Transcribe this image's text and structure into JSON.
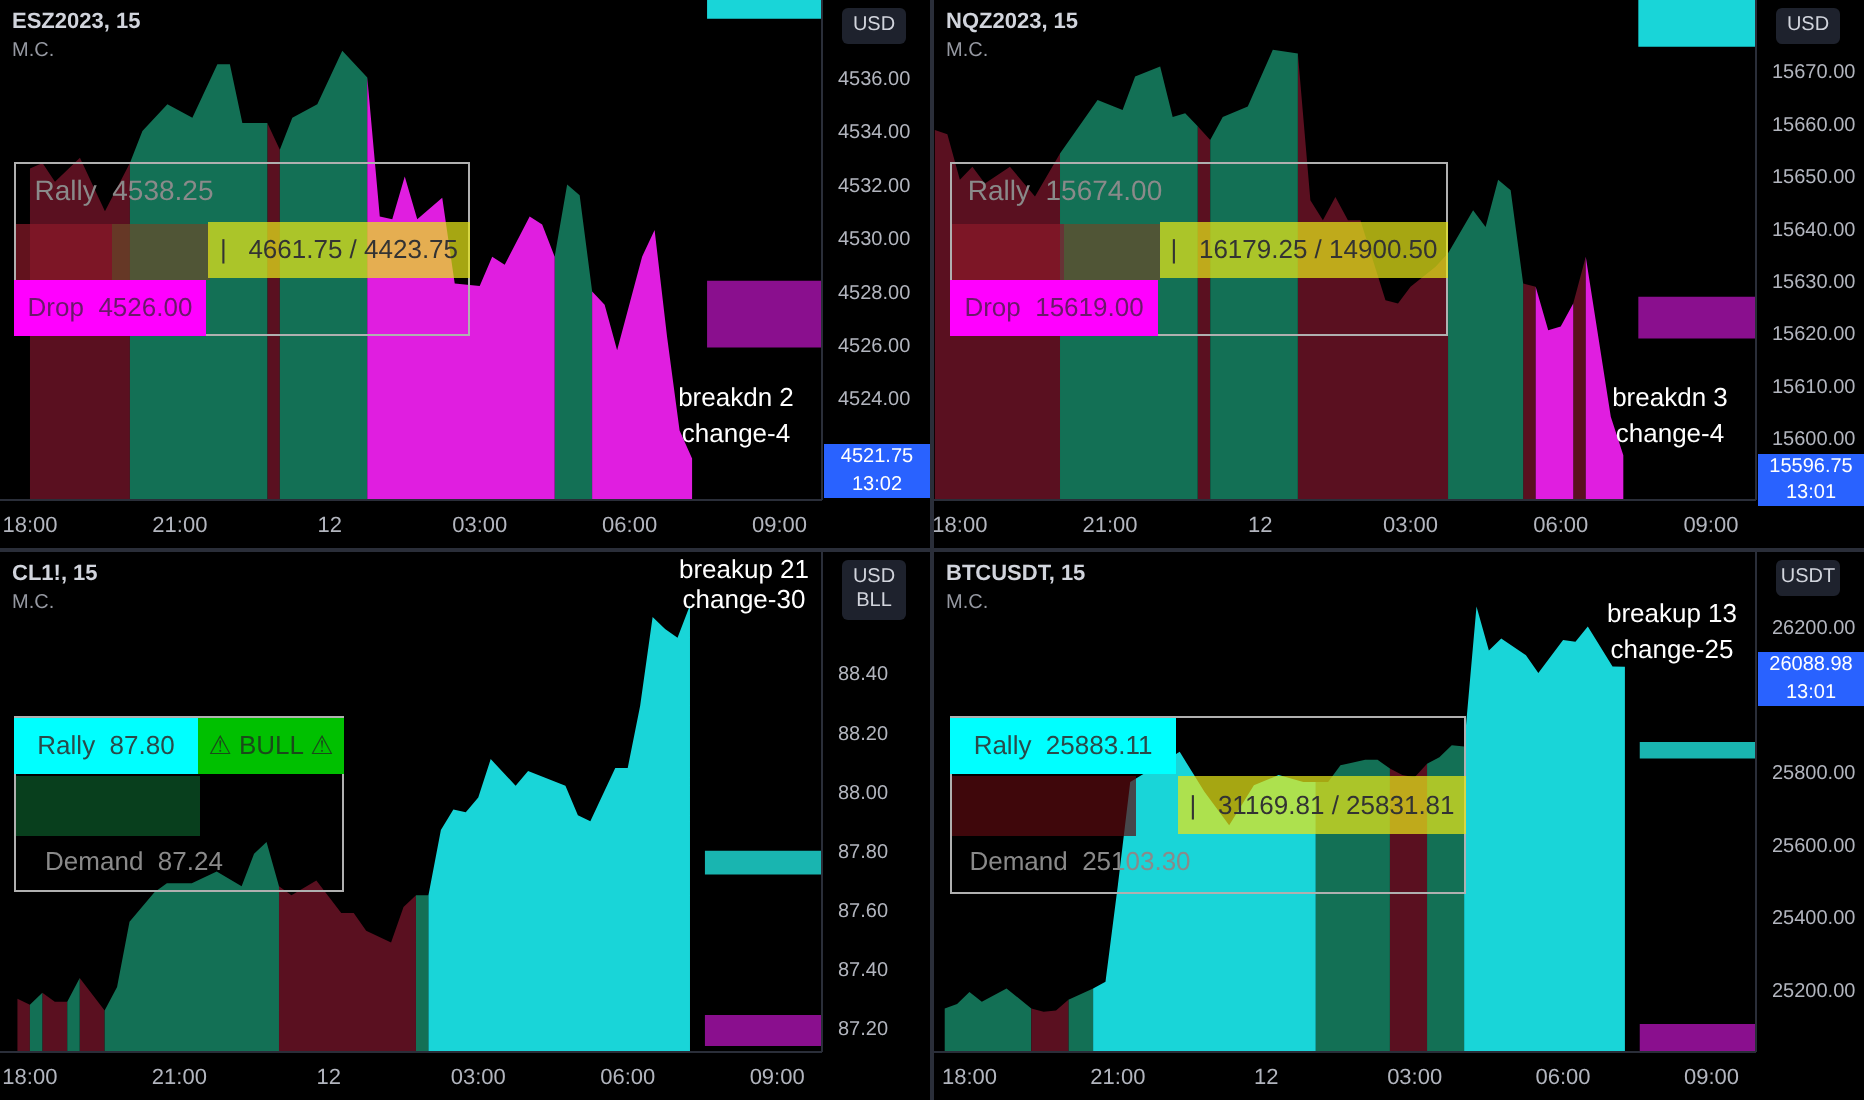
{
  "chart_data": [
    {
      "type": "area",
      "title": "ESZ2023, 15",
      "subtitle": "M.C.",
      "ylabel": "USD",
      "xlim": [
        "2023-09-11T17:24",
        "2023-09-12T09:51"
      ],
      "ylim": [
        4520.2,
        4538.9
      ],
      "xticks": [
        {
          "value": "2023-09-11T18:00",
          "label": "18:00"
        },
        {
          "value": "2023-09-11T21:00",
          "label": "21:00"
        },
        {
          "value": "2023-09-12T00:00",
          "label": "12"
        },
        {
          "value": "2023-09-12T03:00",
          "label": "03:00"
        },
        {
          "value": "2023-09-12T06:00",
          "label": "06:00"
        },
        {
          "value": "2023-09-12T09:00",
          "label": "09:00"
        }
      ],
      "yticks": [
        {
          "value": 4524,
          "label": "4524.00"
        },
        {
          "value": 4526,
          "label": "4526.00"
        },
        {
          "value": 4528,
          "label": "4528.00"
        },
        {
          "value": 4530,
          "label": "4530.00"
        },
        {
          "value": 4532,
          "label": "4532.00"
        },
        {
          "value": 4534,
          "label": "4534.00"
        },
        {
          "value": 4536,
          "label": "4536.00"
        }
      ],
      "series": [
        {
          "color": "#5a1020",
          "x": [
            "2023-09-11T18:00",
            "2023-09-11T18:15",
            "2023-09-11T18:30",
            "2023-09-11T19:00",
            "2023-09-11T19:30",
            "2023-09-11T20:00",
            "2023-09-11T21:00",
            "2023-09-11T22:45",
            "2023-09-11T23:00"
          ],
          "values": [
            4532.6,
            4532.8,
            4532.1,
            4533.0,
            4531.0,
            4532.8,
            null,
            4534.3,
            4533.3
          ]
        },
        {
          "color": "#137055",
          "x": [
            "2023-09-11T20:00",
            "2023-09-11T20:15",
            "2023-09-11T20:45",
            "2023-09-11T21:15",
            "2023-09-11T21:45",
            "2023-09-11T22:00",
            "2023-09-11T22:15",
            "2023-09-11T22:45",
            "2023-09-11T22:52",
            "2023-09-11T23:00",
            "2023-09-11T23:15",
            "2023-09-11T23:45",
            "2023-09-12T00:15",
            "2023-09-12T00:45",
            "2023-09-12T02:00",
            "2023-09-12T04:30",
            "2023-09-12T04:45",
            "2023-09-12T05:00",
            "2023-09-12T05:15"
          ],
          "values": [
            4532.8,
            4534.0,
            4535.0,
            4534.5,
            4536.5,
            4536.5,
            4534.3,
            4534.3,
            null,
            4533.3,
            4534.5,
            4535.0,
            4537.0,
            4536.0,
            null,
            4529.3,
            4532.0,
            4531.6,
            4528.0
          ]
        },
        {
          "color": "#e01ee0",
          "x": [
            "2023-09-12T00:45",
            "2023-09-12T01:00",
            "2023-09-12T01:15",
            "2023-09-12T01:30",
            "2023-09-12T01:45",
            "2023-09-12T02:15",
            "2023-09-12T02:30",
            "2023-09-12T03:00",
            "2023-09-12T03:15",
            "2023-09-12T03:30",
            "2023-09-12T04:00",
            "2023-09-12T04:15",
            "2023-09-12T04:30",
            "2023-09-12T04:52",
            "2023-09-12T05:15",
            "2023-09-12T05:30",
            "2023-09-12T05:45",
            "2023-09-12T06:15",
            "2023-09-12T06:30",
            "2023-09-12T06:45",
            "2023-09-12T07:00",
            "2023-09-12T07:15"
          ],
          "values": [
            4536.0,
            4530.8,
            4530.7,
            4532.3,
            4530.7,
            4531.5,
            4528.3,
            4528.2,
            4529.3,
            4529.0,
            4530.8,
            4530.5,
            4529.3,
            null,
            4528.0,
            4527.5,
            4525.8,
            4529.3,
            4530.3,
            4526.3,
            4522.8,
            4521.75
          ]
        }
      ],
      "bands": [
        {
          "axis": "y",
          "from": 4525.9,
          "to": 4528.4,
          "color": "#8a0f8e"
        },
        {
          "axis": "y",
          "from": 4538.2,
          "to": 4538.9,
          "color": "#19d5d8"
        }
      ],
      "annotations": [
        "Rally  4538.25",
        "|   4661.75 / 4423.75",
        "Drop  4526.00",
        "breakdn 2",
        "change-4",
        "4521.75",
        "13:02"
      ]
    },
    {
      "type": "area",
      "title": "NQZ2023, 15",
      "subtitle": "M.C.",
      "ylabel": "USD",
      "xlim": [
        "2023-09-11T17:29",
        "2023-09-12T09:54"
      ],
      "ylim": [
        15588.2,
        15683.6
      ],
      "xticks": [
        {
          "value": "2023-09-11T18:00",
          "label": "18:00"
        },
        {
          "value": "2023-09-11T21:00",
          "label": "21:00"
        },
        {
          "value": "2023-09-12T00:00",
          "label": "12"
        },
        {
          "value": "2023-09-12T03:00",
          "label": "03:00"
        },
        {
          "value": "2023-09-12T06:00",
          "label": "06:00"
        },
        {
          "value": "2023-09-12T09:00",
          "label": "09:00"
        }
      ],
      "yticks": [
        {
          "value": 15600,
          "label": "15600.00"
        },
        {
          "value": 15610,
          "label": "15610.00"
        },
        {
          "value": 15620,
          "label": "15620.00"
        },
        {
          "value": 15630,
          "label": "15630.00"
        },
        {
          "value": 15640,
          "label": "15640.00"
        },
        {
          "value": 15650,
          "label": "15650.00"
        },
        {
          "value": 15660,
          "label": "15660.00"
        },
        {
          "value": 15670,
          "label": "15670.00"
        }
      ],
      "series": [
        {
          "color": "#5a1020",
          "x": [
            "2023-09-11T17:30",
            "2023-09-11T17:45",
            "2023-09-11T18:00",
            "2023-09-11T18:15",
            "2023-09-11T18:30",
            "2023-09-11T19:00",
            "2023-09-11T19:30",
            "2023-09-11T20:00",
            "2023-09-11T21:00",
            "2023-09-11T22:45",
            "2023-09-11T23:00",
            "2023-09-12T00:00",
            "2023-09-12T00:45",
            "2023-09-12T01:00",
            "2023-09-12T01:15",
            "2023-09-12T01:30",
            "2023-09-12T01:45",
            "2023-09-12T02:00",
            "2023-09-12T02:30",
            "2023-09-12T02:45",
            "2023-09-12T03:00",
            "2023-09-12T03:30",
            "2023-09-12T03:45",
            "2023-09-12T04:30",
            "2023-09-12T05:15",
            "2023-09-12T05:30",
            "2023-09-12T05:50",
            "2023-09-12T06:15",
            "2023-09-12T06:30"
          ],
          "values": [
            15658.8,
            15658.0,
            15649.3,
            15651.8,
            15648.6,
            15651.8,
            15646.1,
            15654.3,
            null,
            15659.5,
            15656.9,
            null,
            15673.4,
            15645.4,
            15641.6,
            15646.0,
            15641.6,
            15641.6,
            15626.3,
            15625.7,
            15628.9,
            15632.7,
            15635.3,
            null,
            15629.5,
            15628.9,
            null,
            15625.7,
            15634.6
          ]
        },
        {
          "color": "#137055",
          "x": [
            "2023-09-11T20:00",
            "2023-09-11T20:45",
            "2023-09-11T21:15",
            "2023-09-11T21:30",
            "2023-09-11T22:00",
            "2023-09-11T22:15",
            "2023-09-11T22:30",
            "2023-09-11T22:45",
            "2023-09-11T22:52",
            "2023-09-11T23:00",
            "2023-09-11T23:15",
            "2023-09-11T23:45",
            "2023-09-12T00:15",
            "2023-09-12T00:45",
            "2023-09-12T02:00",
            "2023-09-12T03:45",
            "2023-09-12T04:15",
            "2023-09-12T04:30",
            "2023-09-12T04:45",
            "2023-09-12T05:00",
            "2023-09-12T05:15"
          ],
          "values": [
            15654.3,
            15664.5,
            15662.6,
            15669.0,
            15670.9,
            15661.3,
            15662.0,
            15659.5,
            null,
            15656.9,
            15661.3,
            15663.3,
            15674.1,
            15673.4,
            null,
            15635.3,
            15643.5,
            15640.3,
            15649.3,
            15647.3,
            15629.5
          ]
        },
        {
          "color": "#e01ee0",
          "x": [
            "2023-09-12T05:30",
            "2023-09-12T05:45",
            "2023-09-12T06:00",
            "2023-09-12T06:15",
            "2023-09-12T06:22",
            "2023-09-12T06:30",
            "2023-09-12T07:00",
            "2023-09-12T07:15"
          ],
          "values": [
            15628.9,
            15620.6,
            15621.3,
            15625.7,
            null,
            15634.6,
            15604.1,
            15596.75
          ]
        }
      ],
      "bands": [
        {
          "axis": "y",
          "from": 15619.0,
          "to": 15627.0,
          "color": "#8a0f8e"
        },
        {
          "axis": "y",
          "from": 15674.7,
          "to": 15683.6,
          "color": "#19d5d8"
        }
      ],
      "annotations": [
        "Rally  15674.00",
        "|   16179.25 / 14900.50",
        "Drop  15619.00",
        "breakdn 3",
        "change-4",
        "15596.75",
        "13:01"
      ]
    },
    {
      "type": "area",
      "title": "CL1!, 15",
      "subtitle": "M.C.",
      "ylabel": "USD BLL",
      "xlim": [
        "2023-09-11T17:24",
        "2023-09-12T09:54"
      ],
      "ylim": [
        87.12,
        88.81
      ],
      "xticks": [
        {
          "value": "2023-09-11T18:00",
          "label": "18:00"
        },
        {
          "value": "2023-09-11T21:00",
          "label": "21:00"
        },
        {
          "value": "2023-09-12T00:00",
          "label": "12"
        },
        {
          "value": "2023-09-12T03:00",
          "label": "03:00"
        },
        {
          "value": "2023-09-12T06:00",
          "label": "06:00"
        },
        {
          "value": "2023-09-12T09:00",
          "label": "09:00"
        }
      ],
      "yticks": [
        {
          "value": 87.2,
          "label": "87.20"
        },
        {
          "value": 87.4,
          "label": "87.40"
        },
        {
          "value": 87.6,
          "label": "87.60"
        },
        {
          "value": 87.8,
          "label": "87.80"
        },
        {
          "value": 88.0,
          "label": "88.00"
        },
        {
          "value": 88.2,
          "label": "88.20"
        },
        {
          "value": 88.4,
          "label": "88.40"
        }
      ],
      "series": [
        {
          "color": "#5a1020",
          "x": [
            "2023-09-11T17:45",
            "2023-09-11T18:00",
            "2023-09-11T18:07",
            "2023-09-11T18:15",
            "2023-09-11T18:30",
            "2023-09-11T18:45",
            "2023-09-11T18:52",
            "2023-09-11T19:00",
            "2023-09-11T19:30",
            "2023-09-11T21:00",
            "2023-09-11T23:00",
            "2023-09-11T23:15",
            "2023-09-11T23:45",
            "2023-09-12T00:15",
            "2023-09-12T00:30",
            "2023-09-12T00:45",
            "2023-09-12T01:15",
            "2023-09-12T01:30",
            "2023-09-12T01:45"
          ],
          "values": [
            87.3,
            87.28,
            null,
            87.32,
            87.29,
            87.29,
            null,
            87.37,
            87.26,
            null,
            87.68,
            87.65,
            87.7,
            87.59,
            87.59,
            87.53,
            87.49,
            87.61,
            87.65
          ]
        },
        {
          "color": "#137055",
          "x": [
            "2023-09-11T18:00",
            "2023-09-11T18:15",
            "2023-09-11T18:30",
            "2023-09-11T18:45",
            "2023-09-11T19:00",
            "2023-09-11T19:15",
            "2023-09-11T19:30",
            "2023-09-11T19:45",
            "2023-09-11T20:00",
            "2023-09-11T20:30",
            "2023-09-11T20:45",
            "2023-09-11T21:15",
            "2023-09-11T21:45",
            "2023-09-11T22:15",
            "2023-09-11T22:30",
            "2023-09-11T22:45",
            "2023-09-11T23:00",
            "2023-09-12T00:00",
            "2023-09-12T01:45",
            "2023-09-12T02:00"
          ],
          "values": [
            87.28,
            87.32,
            null,
            87.29,
            87.37,
            null,
            87.26,
            87.34,
            87.56,
            87.66,
            87.69,
            87.69,
            87.73,
            87.68,
            87.79,
            87.83,
            87.68,
            null,
            87.65,
            87.65
          ]
        },
        {
          "color": "#19d5d8",
          "x": [
            "2023-09-12T02:00",
            "2023-09-12T02:15",
            "2023-09-12T02:30",
            "2023-09-12T02:45",
            "2023-09-12T03:00",
            "2023-09-12T03:15",
            "2023-09-12T03:45",
            "2023-09-12T04:00",
            "2023-09-12T04:45",
            "2023-09-12T05:00",
            "2023-09-12T05:15",
            "2023-09-12T05:45",
            "2023-09-12T06:00",
            "2023-09-12T06:15",
            "2023-09-12T06:30",
            "2023-09-12T06:45",
            "2023-09-12T07:00",
            "2023-09-12T07:15"
          ],
          "values": [
            87.65,
            87.87,
            87.94,
            87.93,
            87.98,
            88.11,
            88.02,
            88.07,
            88.02,
            87.92,
            87.9,
            88.08,
            88.08,
            88.29,
            88.59,
            88.55,
            88.52,
            88.63
          ]
        }
      ],
      "bands": [
        {
          "axis": "y",
          "from": 87.72,
          "to": 87.8,
          "color": "#19b5b0"
        },
        {
          "axis": "y",
          "from": 87.14,
          "to": 87.245,
          "color": "#8a0f8e"
        }
      ],
      "annotations": [
        "Rally  87.80",
        "⚠ BULL ⚠",
        "Demand  87.24",
        "breakup 21",
        "change-30"
      ]
    },
    {
      "type": "area",
      "title": "BTCUSDT, 15",
      "subtitle": "M.C.",
      "ylabel": "USDT",
      "xlim": [
        "2023-09-11T17:17",
        "2023-09-12T09:54"
      ],
      "ylim": [
        25029,
        26405
      ],
      "xticks": [
        {
          "value": "2023-09-11T18:00",
          "label": "18:00"
        },
        {
          "value": "2023-09-11T21:00",
          "label": "21:00"
        },
        {
          "value": "2023-09-12T00:00",
          "label": "12"
        },
        {
          "value": "2023-09-12T03:00",
          "label": "03:00"
        },
        {
          "value": "2023-09-12T06:00",
          "label": "06:00"
        },
        {
          "value": "2023-09-12T09:00",
          "label": "09:00"
        }
      ],
      "yticks": [
        {
          "value": 25200,
          "label": "25200.00"
        },
        {
          "value": 25400,
          "label": "25400.00"
        },
        {
          "value": 25600,
          "label": "25600.00"
        },
        {
          "value": 25800,
          "label": "25800.00"
        },
        {
          "value": 26200,
          "label": "26200.00"
        }
      ],
      "series": [
        {
          "color": "#137055",
          "x": [
            "2023-09-11T17:30",
            "2023-09-11T17:45",
            "2023-09-11T18:00",
            "2023-09-11T18:15",
            "2023-09-11T18:45",
            "2023-09-11T19:15",
            "2023-09-11T19:30",
            "2023-09-11T20:00",
            "2023-09-11T20:30",
            "2023-09-11T22:00",
            "2023-09-12T01:00",
            "2023-09-12T01:15",
            "2023-09-12T01:30",
            "2023-09-12T02:00",
            "2023-09-12T02:15",
            "2023-09-12T02:30",
            "2023-09-12T02:52",
            "2023-09-12T03:15",
            "2023-09-12T03:30",
            "2023-09-12T03:45",
            "2023-09-12T04:00"
          ],
          "values": [
            25149,
            25161,
            25194,
            25167,
            25204,
            25149,
            null,
            25173,
            25204,
            null,
            25772,
            25772,
            25818,
            25833,
            25833,
            25809,
            null,
            25822,
            25840,
            25873,
            25870
          ]
        },
        {
          "color": "#5a1020",
          "x": [
            "2023-09-11T19:15",
            "2023-09-11T19:30",
            "2023-09-11T19:45",
            "2023-09-11T20:00",
            "2023-09-11T22:00",
            "2023-09-12T02:30",
            "2023-09-12T02:45",
            "2023-09-12T03:00",
            "2023-09-12T03:15"
          ],
          "values": [
            25149,
            25140,
            25143,
            25173,
            null,
            25809,
            25791,
            25785,
            25822
          ]
        },
        {
          "color": "#19d5d8",
          "x": [
            "2023-09-11T20:30",
            "2023-09-11T20:45",
            "2023-09-11T21:00",
            "2023-09-11T21:15",
            "2023-09-11T22:15",
            "2023-09-11T22:45",
            "2023-09-11T23:15",
            "2023-09-11T23:45",
            "2023-09-12T00:15",
            "2023-09-12T00:45",
            "2023-09-12T01:00",
            "2023-09-12T02:00",
            "2023-09-12T04:00",
            "2023-09-12T04:15",
            "2023-09-12T04:30",
            "2023-09-12T04:45",
            "2023-09-12T05:15",
            "2023-09-12T05:30",
            "2023-09-12T06:00",
            "2023-09-12T06:15",
            "2023-09-12T06:30",
            "2023-09-12T07:00",
            "2023-09-12T07:15"
          ],
          "values": [
            25204,
            25222,
            25488,
            25772,
            25855,
            25745,
            25653,
            25763,
            25791,
            25772,
            25772,
            null,
            25870,
            26255,
            26134,
            26167,
            26121,
            26072,
            26163,
            26158,
            26200,
            26090,
            26088.98
          ]
        }
      ],
      "bands": [
        {
          "axis": "y",
          "from": 25837,
          "to": 25882,
          "color": "#19b5b0"
        },
        {
          "axis": "y",
          "from": 25029,
          "to": 25106,
          "color": "#8a0f8e"
        }
      ],
      "annotations": [
        "Rally  25883.11",
        "|   31169.81 / 25831.81",
        "Demand  25103.30",
        "breakup 13",
        "change-25",
        "26088.98",
        "13:01"
      ]
    }
  ]
}
